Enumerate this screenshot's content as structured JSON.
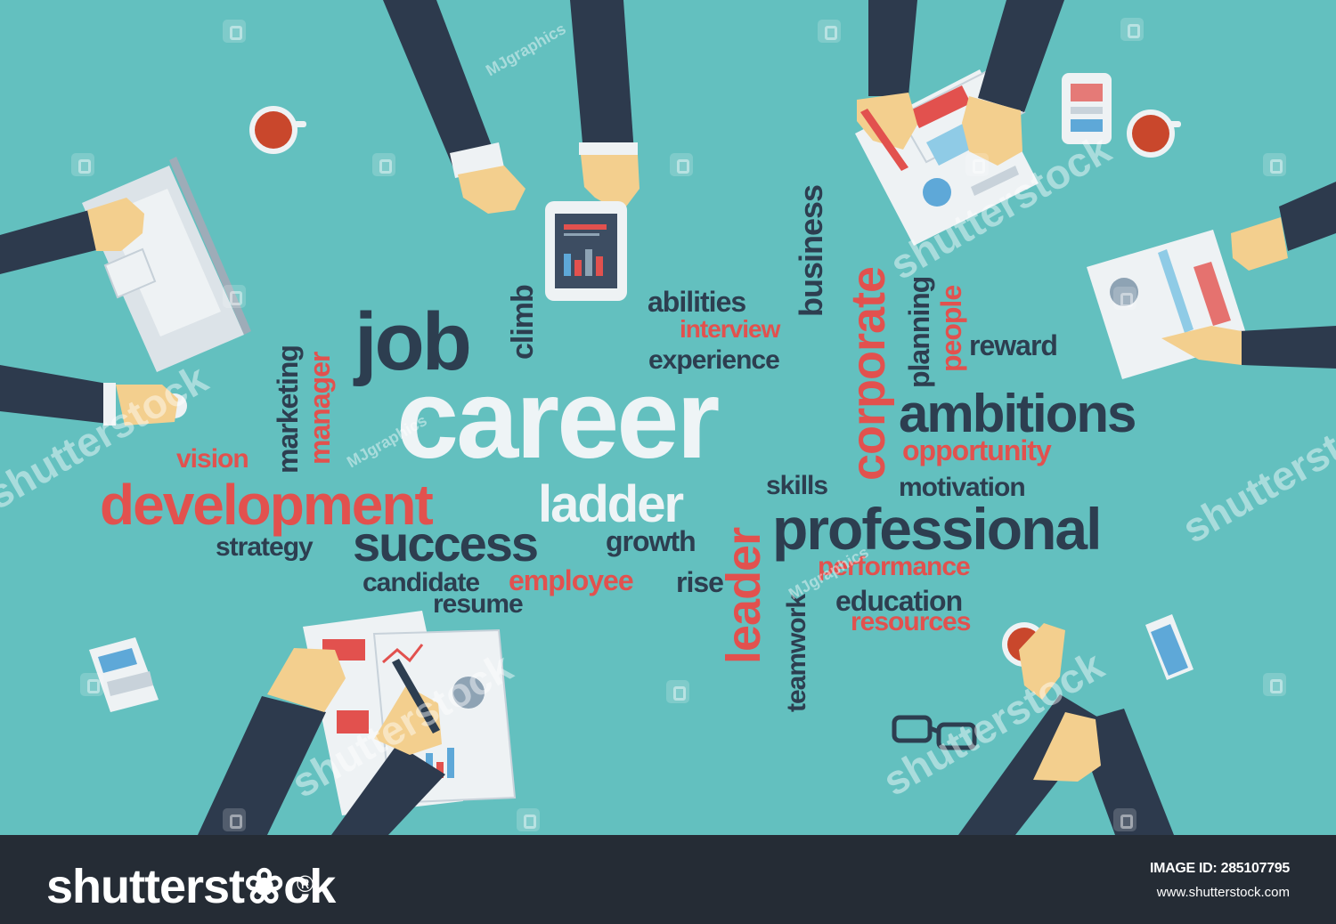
{
  "colors": {
    "background": "#63c0bf",
    "word_dark": "#2d3e50",
    "word_red": "#e2514e",
    "word_white": "#eef4f6",
    "sleeve": "#2d3a4d",
    "skin": "#f3cf8e",
    "footer": "#252c35"
  },
  "words": [
    {
      "text": "career",
      "style": "white"
    },
    {
      "text": "job",
      "style": "dark"
    },
    {
      "text": "climb",
      "style": "dark"
    },
    {
      "text": "abilities",
      "style": "dark"
    },
    {
      "text": "interview",
      "style": "red"
    },
    {
      "text": "experience",
      "style": "dark"
    },
    {
      "text": "business",
      "style": "dark"
    },
    {
      "text": "corporate",
      "style": "red"
    },
    {
      "text": "planning",
      "style": "dark"
    },
    {
      "text": "people",
      "style": "red"
    },
    {
      "text": "reward",
      "style": "dark"
    },
    {
      "text": "ambitions",
      "style": "dark"
    },
    {
      "text": "opportunity",
      "style": "red"
    },
    {
      "text": "motivation",
      "style": "dark"
    },
    {
      "text": "marketing",
      "style": "dark"
    },
    {
      "text": "manager",
      "style": "red"
    },
    {
      "text": "vision",
      "style": "red"
    },
    {
      "text": "development",
      "style": "red"
    },
    {
      "text": "ladder",
      "style": "white"
    },
    {
      "text": "skills",
      "style": "dark"
    },
    {
      "text": "professional",
      "style": "dark"
    },
    {
      "text": "strategy",
      "style": "dark"
    },
    {
      "text": "success",
      "style": "dark"
    },
    {
      "text": "growth",
      "style": "dark"
    },
    {
      "text": "leader",
      "style": "red"
    },
    {
      "text": "performance",
      "style": "red"
    },
    {
      "text": "candidate",
      "style": "dark"
    },
    {
      "text": "employee",
      "style": "red"
    },
    {
      "text": "rise",
      "style": "dark"
    },
    {
      "text": "resume",
      "style": "dark"
    },
    {
      "text": "teamwork",
      "style": "dark"
    },
    {
      "text": "education",
      "style": "dark"
    },
    {
      "text": "resources",
      "style": "red"
    }
  ],
  "watermark": {
    "credit": "MJgraphics",
    "brand": "shutterstock"
  },
  "footer": {
    "logo": "shutterst❀ck",
    "logo_mark": "®",
    "image_id": "IMAGE ID: 285107795",
    "site": "www.shutterstock.com"
  }
}
